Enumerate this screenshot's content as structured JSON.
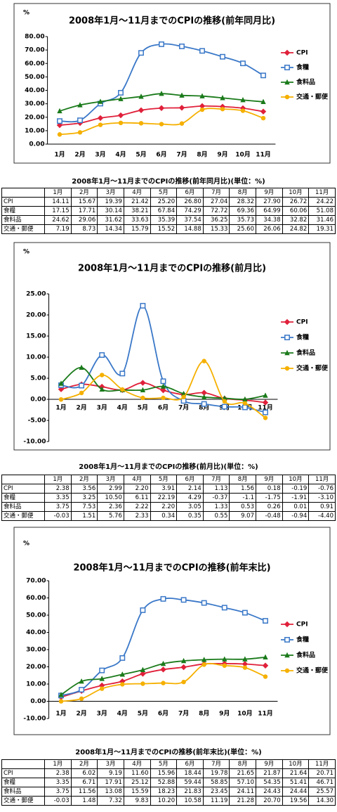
{
  "chart_data": [
    {
      "type": "line",
      "title": "2008年1月～11月までのCPIの推移(前年同月比)",
      "ylabel": "%",
      "categories": [
        "1月",
        "2月",
        "3月",
        "4月",
        "5月",
        "6月",
        "7月",
        "8月",
        "9月",
        "10月",
        "11月"
      ],
      "ylim": [
        0,
        80
      ],
      "yticks": [
        {
          "value": 0,
          "label": "0.00"
        },
        {
          "value": 10,
          "label": "10.00"
        },
        {
          "value": 20,
          "label": "20.00"
        },
        {
          "value": 30,
          "label": "30.00"
        },
        {
          "value": 40,
          "label": "40.00"
        },
        {
          "value": 50,
          "label": "50.00"
        },
        {
          "value": 60,
          "label": "60.00"
        },
        {
          "value": 70,
          "label": "70.00"
        },
        {
          "value": 80,
          "label": "80.00"
        }
      ],
      "grid": false,
      "smooth": true,
      "legend": "right",
      "series": [
        {
          "name": "CPI",
          "color": "#e0203a",
          "marker": "diamond",
          "values": [
            14.11,
            15.67,
            19.39,
            21.42,
            25.2,
            26.8,
            27.04,
            28.32,
            27.9,
            26.72,
            24.22
          ]
        },
        {
          "name": "食糧",
          "color": "#3a78c8",
          "marker": "square",
          "values": [
            17.15,
            17.71,
            30.14,
            38.21,
            67.84,
            74.29,
            72.72,
            69.36,
            64.99,
            60.06,
            51.08
          ]
        },
        {
          "name": "食料品",
          "color": "#1a7a1a",
          "marker": "triangle",
          "values": [
            24.62,
            29.06,
            31.62,
            33.63,
            35.39,
            37.54,
            36.25,
            35.73,
            34.38,
            32.82,
            31.46
          ]
        },
        {
          "name": "交通・郵便",
          "color": "#f5b000",
          "marker": "circle",
          "values": [
            7.19,
            8.73,
            14.34,
            15.79,
            15.52,
            14.88,
            15.33,
            25.6,
            26.06,
            24.82,
            19.31
          ]
        }
      ]
    },
    {
      "type": "line",
      "title": "2008年1月～11月までのCPIの推移(前月比)",
      "ylabel": "%",
      "categories": [
        "1月",
        "2月",
        "3月",
        "4月",
        "5月",
        "6月",
        "7月",
        "8月",
        "9月",
        "10月",
        "11月"
      ],
      "ylim": [
        -10,
        25
      ],
      "yticks": [
        {
          "value": -10,
          "label": "-10.00"
        },
        {
          "value": -5,
          "label": "-5.00"
        },
        {
          "value": 0,
          "label": "0.00"
        },
        {
          "value": 5,
          "label": "5.00"
        },
        {
          "value": 10,
          "label": "10.00"
        },
        {
          "value": 15,
          "label": "15.00"
        },
        {
          "value": 20,
          "label": "20.00"
        },
        {
          "value": 25,
          "label": "25.00"
        }
      ],
      "grid": false,
      "smooth": true,
      "legend": "right",
      "series": [
        {
          "name": "CPI",
          "color": "#e0203a",
          "marker": "diamond",
          "values": [
            2.38,
            3.56,
            2.99,
            2.2,
            3.91,
            2.14,
            1.13,
            1.56,
            0.18,
            -0.19,
            -0.76
          ]
        },
        {
          "name": "食糧",
          "color": "#3a78c8",
          "marker": "square",
          "values": [
            3.35,
            3.25,
            10.5,
            6.11,
            22.19,
            4.29,
            -0.37,
            -1.1,
            -1.75,
            -1.91,
            -3.1
          ]
        },
        {
          "name": "食料品",
          "color": "#1a7a1a",
          "marker": "triangle",
          "values": [
            3.75,
            7.53,
            2.36,
            2.22,
            2.2,
            3.05,
            1.33,
            0.53,
            0.26,
            0.01,
            0.91
          ]
        },
        {
          "name": "交通・郵便",
          "color": "#f5b000",
          "marker": "circle",
          "values": [
            -0.03,
            1.51,
            5.76,
            2.33,
            0.34,
            0.35,
            0.55,
            9.07,
            -0.48,
            -0.94,
            -4.4
          ]
        }
      ]
    },
    {
      "type": "line",
      "title": "2008年1月～11月までのCPIの推移(前年末比)",
      "ylabel": "%",
      "categories": [
        "1月",
        "2月",
        "3月",
        "4月",
        "5月",
        "6月",
        "7月",
        "8月",
        "9月",
        "10月",
        "11月"
      ],
      "ylim": [
        -10,
        70
      ],
      "yticks": [
        {
          "value": -10,
          "label": "-10.00"
        },
        {
          "value": 0,
          "label": "0.00"
        },
        {
          "value": 10,
          "label": "10.00"
        },
        {
          "value": 20,
          "label": "20.00"
        },
        {
          "value": 30,
          "label": "30.00"
        },
        {
          "value": 40,
          "label": "40.00"
        },
        {
          "value": 50,
          "label": "50.00"
        },
        {
          "value": 60,
          "label": "60.00"
        },
        {
          "value": 70,
          "label": "70.00"
        }
      ],
      "grid": false,
      "smooth": true,
      "legend": "right",
      "series": [
        {
          "name": "CPI",
          "color": "#e0203a",
          "marker": "diamond",
          "values": [
            2.38,
            6.02,
            9.19,
            11.6,
            15.96,
            18.44,
            19.78,
            21.65,
            21.87,
            21.64,
            20.71
          ]
        },
        {
          "name": "食糧",
          "color": "#3a78c8",
          "marker": "square",
          "values": [
            3.35,
            6.71,
            17.91,
            25.12,
            52.88,
            59.44,
            58.85,
            57.1,
            54.35,
            51.41,
            46.71
          ]
        },
        {
          "name": "食料品",
          "color": "#1a7a1a",
          "marker": "triangle",
          "values": [
            3.75,
            11.56,
            13.08,
            15.59,
            18.23,
            21.83,
            23.45,
            24.11,
            24.43,
            24.44,
            25.57
          ]
        },
        {
          "name": "交通・郵便",
          "color": "#f5b000",
          "marker": "circle",
          "values": [
            -0.03,
            1.48,
            7.32,
            9.83,
            10.2,
            10.58,
            11.19,
            21.28,
            20.7,
            19.56,
            14.3
          ]
        }
      ]
    }
  ],
  "tables": [
    {
      "title": "2008年1月～11月までのCPIの推移(前年同月比)(単位：%)",
      "header": [
        "1月",
        "2月",
        "3月",
        "4月",
        "5月",
        "6月",
        "7月",
        "8月",
        "9月",
        "10月",
        "11月"
      ],
      "rows": [
        [
          "CPI",
          "14.11",
          "15.67",
          "19.39",
          "21.42",
          "25.20",
          "26.80",
          "27.04",
          "28.32",
          "27.90",
          "26.72",
          "24.22"
        ],
        [
          "食糧",
          "17.15",
          "17.71",
          "30.14",
          "38.21",
          "67.84",
          "74.29",
          "72.72",
          "69.36",
          "64.99",
          "60.06",
          "51.08"
        ],
        [
          "食料品",
          "24.62",
          "29.06",
          "31.62",
          "33.63",
          "35.39",
          "37.54",
          "36.25",
          "35.73",
          "34.38",
          "32.82",
          "31.46"
        ],
        [
          "交通・郵便",
          "7.19",
          "8.73",
          "14.34",
          "15.79",
          "15.52",
          "14.88",
          "15.33",
          "25.60",
          "26.06",
          "24.82",
          "19.31"
        ]
      ]
    },
    {
      "title": "2008年1月～11月までのCPIの推移(前月比)(単位：%)",
      "header": [
        "1月",
        "2月",
        "3月",
        "4月",
        "5月",
        "6月",
        "7月",
        "8月",
        "9月",
        "10月",
        "11月"
      ],
      "rows": [
        [
          "CPI",
          "2.38",
          "3.56",
          "2.99",
          "2.20",
          "3.91",
          "2.14",
          "1.13",
          "1.56",
          "0.18",
          "-0.19",
          "-0.76"
        ],
        [
          "食糧",
          "3.35",
          "3.25",
          "10.50",
          "6.11",
          "22.19",
          "4.29",
          "-0.37",
          "-1.1",
          "-1.75",
          "-1.91",
          "-3.10"
        ],
        [
          "食料品",
          "3.75",
          "7.53",
          "2.36",
          "2.22",
          "2.20",
          "3.05",
          "1.33",
          "0.53",
          "0.26",
          "0.01",
          "0.91"
        ],
        [
          "交通・郵便",
          "-0.03",
          "1.51",
          "5.76",
          "2.33",
          "0.34",
          "0.35",
          "0.55",
          "9.07",
          "-0.48",
          "-0.94",
          "-4.40"
        ]
      ]
    },
    {
      "title": "2008年1月～11月までのCPIの推移(前年末比)(単位：%)",
      "header": [
        "1月",
        "2月",
        "3月",
        "4月",
        "5月",
        "6月",
        "7月",
        "8月",
        "9月",
        "10月",
        "11月"
      ],
      "rows": [
        [
          "CPI",
          "2.38",
          "6.02",
          "9.19",
          "11.60",
          "15.96",
          "18.44",
          "19.78",
          "21.65",
          "21.87",
          "21.64",
          "20.71"
        ],
        [
          "食糧",
          "3.35",
          "6.71",
          "17.91",
          "25.12",
          "52.88",
          "59.44",
          "58.85",
          "57.10",
          "54.35",
          "51.41",
          "46.71"
        ],
        [
          "食料品",
          "3.75",
          "11.56",
          "13.08",
          "15.59",
          "18.23",
          "21.83",
          "23.45",
          "24.11",
          "24.43",
          "24.44",
          "25.57"
        ],
        [
          "交通・郵便",
          "-0.03",
          "1.48",
          "7.32",
          "9.83",
          "10.20",
          "10.58",
          "11.19",
          "21.28",
          "20.70",
          "19.56",
          "14.30"
        ]
      ]
    }
  ]
}
